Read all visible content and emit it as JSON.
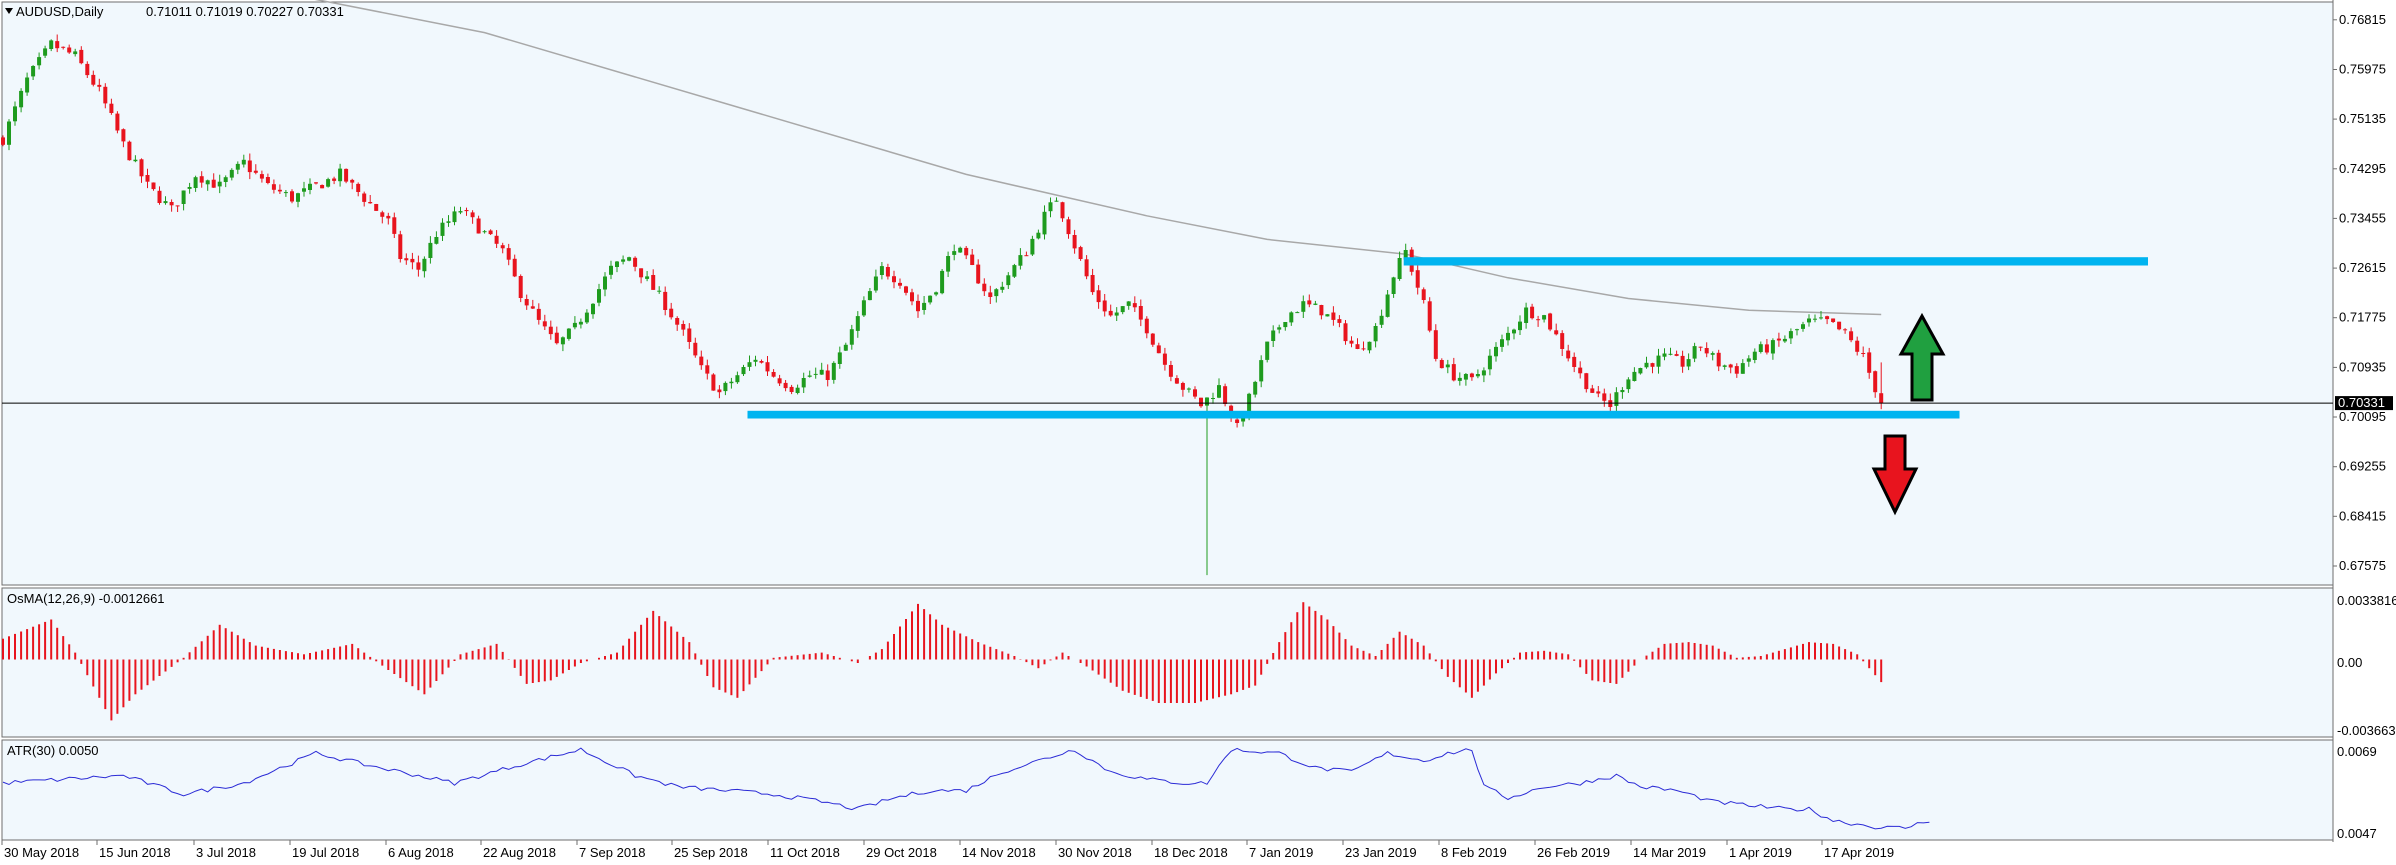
{
  "chart_data": {
    "type": "candlestick",
    "symbol_header": "AUDUSD,Daily",
    "ohlc_header": "0.71011 0.71019 0.70227 0.70331",
    "colors": {
      "background": "#f1f8fd",
      "up_candle": "#1e9b1e",
      "down_candle": "#e8141e",
      "ma_line": "#a8a8a8",
      "zone": "#00b4f0",
      "atr_line": "#2b2bd6",
      "osma_bars": "#e8141e",
      "arrow_up": "#20a040",
      "arrow_down": "#e8141e",
      "price_tag_bg": "#000000"
    },
    "price_axis": {
      "ticks": [
        "0.76815",
        "0.75975",
        "0.75135",
        "0.74295",
        "0.73455",
        "0.72615",
        "0.71775",
        "0.70935",
        "0.70095",
        "0.69255",
        "0.68415",
        "0.67575"
      ],
      "current_price_label": "0.70331",
      "ylim": [
        0.6727,
        0.771
      ]
    },
    "time_axis": {
      "labels": [
        "30 May 2018",
        "15 Jun 2018",
        "3 Jul 2018",
        "19 Jul 2018",
        "6 Aug 2018",
        "22 Aug 2018",
        "7 Sep 2018",
        "25 Sep 2018",
        "11 Oct 2018",
        "29 Oct 2018",
        "14 Nov 2018",
        "30 Nov 2018",
        "18 Dec 2018",
        "7 Jan 2019",
        "23 Jan 2019",
        "8 Feb 2019",
        "26 Feb 2019",
        "14 Mar 2019",
        "1 Apr 2019",
        "17 Apr 2019"
      ]
    },
    "price_path": [
      [
        0,
        0.748
      ],
      [
        4,
        0.758
      ],
      [
        8,
        0.764
      ],
      [
        12,
        0.762
      ],
      [
        16,
        0.756
      ],
      [
        20,
        0.747
      ],
      [
        24,
        0.74
      ],
      [
        28,
        0.736
      ],
      [
        32,
        0.742
      ],
      [
        36,
        0.74
      ],
      [
        40,
        0.744
      ],
      [
        44,
        0.74
      ],
      [
        48,
        0.738
      ],
      [
        52,
        0.74
      ],
      [
        56,
        0.742
      ],
      [
        60,
        0.738
      ],
      [
        64,
        0.734
      ],
      [
        66,
        0.728
      ],
      [
        69,
        0.726
      ],
      [
        72,
        0.732
      ],
      [
        76,
        0.736
      ],
      [
        80,
        0.732
      ],
      [
        83,
        0.729
      ],
      [
        86,
        0.722
      ],
      [
        89,
        0.717
      ],
      [
        92,
        0.713
      ],
      [
        95,
        0.716
      ],
      [
        98,
        0.721
      ],
      [
        101,
        0.726
      ],
      [
        104,
        0.728
      ],
      [
        107,
        0.724
      ],
      [
        110,
        0.72
      ],
      [
        113,
        0.715
      ],
      [
        116,
        0.709
      ],
      [
        119,
        0.705
      ],
      [
        122,
        0.708
      ],
      [
        125,
        0.711
      ],
      [
        128,
        0.708
      ],
      [
        131,
        0.706
      ],
      [
        134,
        0.708
      ],
      [
        137,
        0.708
      ],
      [
        140,
        0.713
      ],
      [
        143,
        0.72
      ],
      [
        146,
        0.726
      ],
      [
        149,
        0.724
      ],
      [
        152,
        0.719
      ],
      [
        155,
        0.723
      ],
      [
        158,
        0.73
      ],
      [
        161,
        0.726
      ],
      [
        164,
        0.721
      ],
      [
        167,
        0.725
      ],
      [
        170,
        0.729
      ],
      [
        173,
        0.735
      ],
      [
        175,
        0.738
      ],
      [
        178,
        0.73
      ],
      [
        181,
        0.722
      ],
      [
        184,
        0.718
      ],
      [
        187,
        0.72
      ],
      [
        190,
        0.716
      ],
      [
        193,
        0.71
      ],
      [
        196,
        0.706
      ],
      [
        199,
        0.703
      ],
      [
        202,
        0.706
      ],
      [
        205,
        0.699
      ],
      [
        207,
        0.704
      ],
      [
        210,
        0.713
      ],
      [
        213,
        0.718
      ],
      [
        216,
        0.72
      ],
      [
        219,
        0.719
      ],
      [
        222,
        0.716
      ],
      [
        225,
        0.712
      ],
      [
        228,
        0.716
      ],
      [
        231,
        0.725
      ],
      [
        233,
        0.729
      ],
      [
        236,
        0.72
      ],
      [
        238,
        0.711
      ],
      [
        241,
        0.708
      ],
      [
        244,
        0.707
      ],
      [
        247,
        0.711
      ],
      [
        250,
        0.715
      ],
      [
        253,
        0.719
      ],
      [
        256,
        0.718
      ],
      [
        259,
        0.713
      ],
      [
        262,
        0.708
      ],
      [
        265,
        0.704
      ],
      [
        267,
        0.703
      ],
      [
        270,
        0.708
      ],
      [
        273,
        0.71
      ],
      [
        276,
        0.711
      ],
      [
        279,
        0.71
      ],
      [
        282,
        0.713
      ],
      [
        285,
        0.71
      ],
      [
        288,
        0.709
      ],
      [
        291,
        0.712
      ],
      [
        294,
        0.713
      ],
      [
        297,
        0.715
      ],
      [
        300,
        0.717
      ],
      [
        303,
        0.717
      ],
      [
        306,
        0.715
      ],
      [
        309,
        0.711
      ],
      [
        312,
        0.7033
      ]
    ],
    "ma_path": [
      [
        0,
        0.78
      ],
      [
        40,
        0.774
      ],
      [
        80,
        0.766
      ],
      [
        120,
        0.754
      ],
      [
        160,
        0.742
      ],
      [
        190,
        0.735
      ],
      [
        210,
        0.731
      ],
      [
        233,
        0.7285
      ],
      [
        250,
        0.7245
      ],
      [
        270,
        0.721
      ],
      [
        290,
        0.719
      ],
      [
        312,
        0.7183
      ]
    ],
    "resistance_zone": {
      "low": 0.7266,
      "high": 0.728,
      "start_index": 233
    },
    "support_zone": {
      "low": 0.7007,
      "high": 0.702,
      "start_index": 124,
      "end_index": 325
    },
    "current_price": 0.70331,
    "osma": {
      "header": "OsMA(12,26,9) -0.0012661",
      "ticks": [
        "0.0033816",
        "0.00",
        "-0.003663"
      ],
      "ylim": [
        -0.0044,
        0.004
      ],
      "values_path": [
        [
          0,
          0.0012
        ],
        [
          8,
          0.0023
        ],
        [
          12,
          0.0004
        ],
        [
          18,
          -0.0035
        ],
        [
          22,
          -0.002
        ],
        [
          30,
          0.0001
        ],
        [
          36,
          0.002
        ],
        [
          42,
          0.0008
        ],
        [
          50,
          0.0003
        ],
        [
          58,
          0.0009
        ],
        [
          64,
          -0.0006
        ],
        [
          70,
          -0.002
        ],
        [
          76,
          0.0003
        ],
        [
          82,
          0.0009
        ],
        [
          87,
          -0.0014
        ],
        [
          91,
          -0.0012
        ],
        [
          96,
          -0.0002
        ],
        [
          102,
          0.0004
        ],
        [
          108,
          0.0028
        ],
        [
          114,
          0.001
        ],
        [
          118,
          -0.0016
        ],
        [
          122,
          -0.0022
        ],
        [
          128,
          0.0001
        ],
        [
          136,
          0.0004
        ],
        [
          142,
          -0.0002
        ],
        [
          146,
          0.0006
        ],
        [
          152,
          0.0032
        ],
        [
          156,
          0.002
        ],
        [
          162,
          0.001
        ],
        [
          168,
          0.0002
        ],
        [
          172,
          -0.0005
        ],
        [
          176,
          0.0004
        ],
        [
          180,
          -0.0004
        ],
        [
          186,
          -0.0018
        ],
        [
          192,
          -0.0025
        ],
        [
          198,
          -0.0025
        ],
        [
          204,
          -0.002
        ],
        [
          208,
          -0.0015
        ],
        [
          212,
          0.001
        ],
        [
          216,
          0.0033
        ],
        [
          220,
          0.0023
        ],
        [
          224,
          0.0008
        ],
        [
          228,
          0.0002
        ],
        [
          232,
          0.0016
        ],
        [
          236,
          0.0008
        ],
        [
          240,
          -0.001
        ],
        [
          244,
          -0.0022
        ],
        [
          248,
          -0.0008
        ],
        [
          252,
          0.0004
        ],
        [
          256,
          0.0005
        ],
        [
          260,
          0.0003
        ],
        [
          264,
          -0.0012
        ],
        [
          268,
          -0.0014
        ],
        [
          272,
          0.0
        ],
        [
          276,
          0.0009
        ],
        [
          280,
          0.001
        ],
        [
          284,
          0.0008
        ],
        [
          288,
          0.0001
        ],
        [
          292,
          0.0002
        ],
        [
          296,
          0.0006
        ],
        [
          300,
          0.001
        ],
        [
          304,
          0.0009
        ],
        [
          308,
          0.0003
        ],
        [
          312,
          -0.0013
        ]
      ]
    },
    "atr": {
      "header": "ATR(30) 0.0050",
      "ticks": [
        "0.0069",
        "0.0047"
      ],
      "ylim": [
        0.0045,
        0.0071
      ],
      "values_path": [
        [
          0,
          0.006
        ],
        [
          10,
          0.0061
        ],
        [
          20,
          0.0062
        ],
        [
          30,
          0.0057
        ],
        [
          40,
          0.006
        ],
        [
          52,
          0.0068
        ],
        [
          60,
          0.0065
        ],
        [
          66,
          0.0063
        ],
        [
          75,
          0.006
        ],
        [
          86,
          0.0065
        ],
        [
          96,
          0.0069
        ],
        [
          105,
          0.0062
        ],
        [
          112,
          0.0059
        ],
        [
          120,
          0.0058
        ],
        [
          128,
          0.0057
        ],
        [
          136,
          0.0055
        ],
        [
          142,
          0.0053
        ],
        [
          148,
          0.0056
        ],
        [
          154,
          0.0058
        ],
        [
          160,
          0.0058
        ],
        [
          166,
          0.0063
        ],
        [
          172,
          0.0066
        ],
        [
          178,
          0.0069
        ],
        [
          184,
          0.0063
        ],
        [
          190,
          0.0061
        ],
        [
          196,
          0.006
        ],
        [
          200,
          0.006
        ],
        [
          204,
          0.0069
        ],
        [
          212,
          0.0068
        ],
        [
          218,
          0.0064
        ],
        [
          224,
          0.0063
        ],
        [
          230,
          0.0068
        ],
        [
          236,
          0.0066
        ],
        [
          240,
          0.0068
        ],
        [
          244,
          0.0069
        ],
        [
          246,
          0.0059
        ],
        [
          250,
          0.0056
        ],
        [
          256,
          0.0059
        ],
        [
          262,
          0.006
        ],
        [
          268,
          0.0062
        ],
        [
          272,
          0.0059
        ],
        [
          278,
          0.0058
        ],
        [
          284,
          0.0055
        ],
        [
          290,
          0.0054
        ],
        [
          296,
          0.0053
        ],
        [
          300,
          0.0053
        ],
        [
          304,
          0.005
        ],
        [
          308,
          0.0049
        ],
        [
          312,
          0.0048
        ],
        [
          316,
          0.0048
        ],
        [
          320,
          0.005
        ]
      ]
    }
  }
}
